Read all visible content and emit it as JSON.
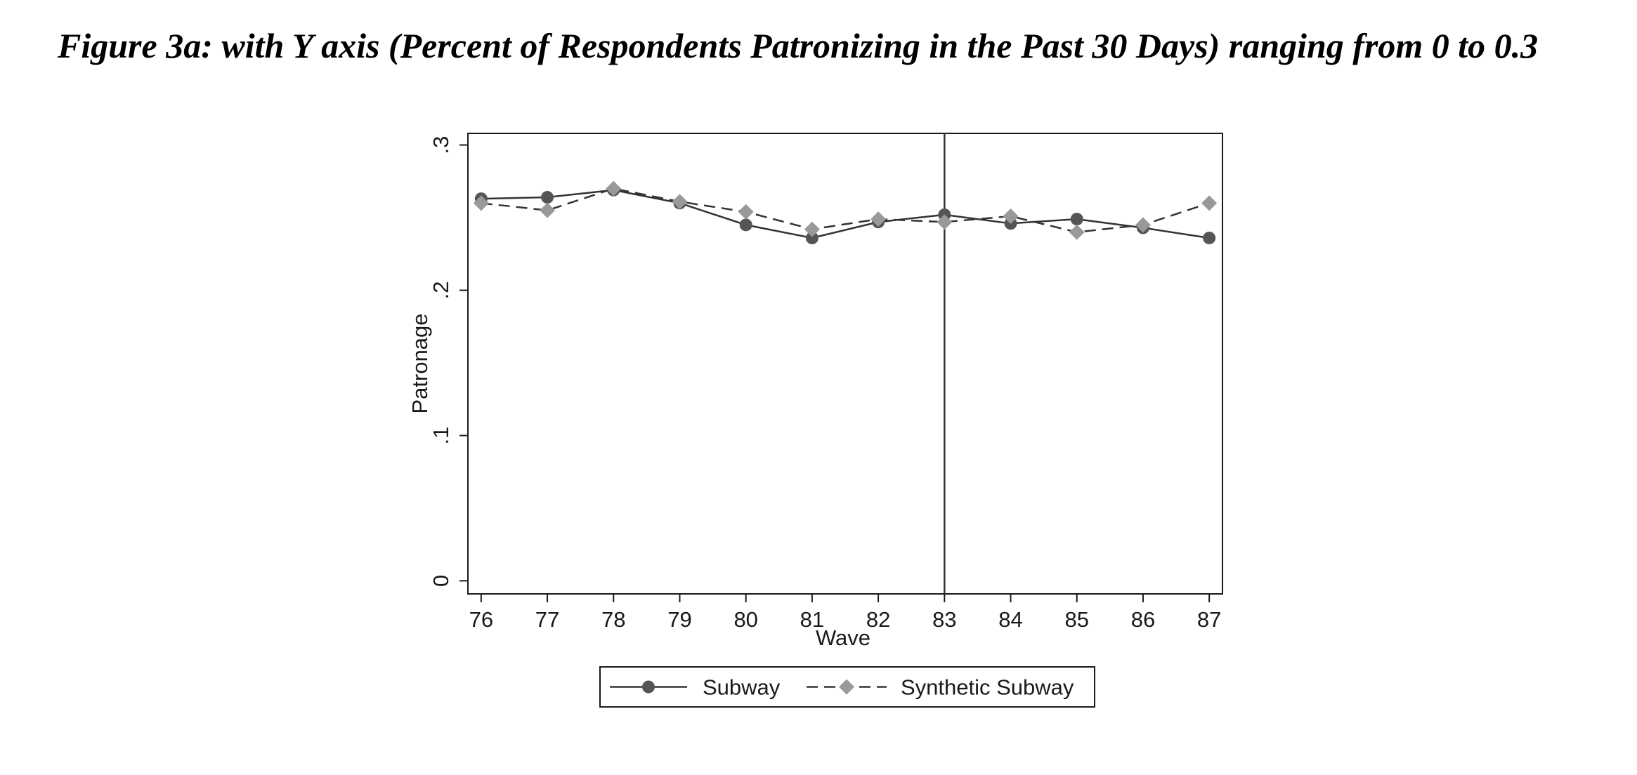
{
  "figure_title": "Figure 3a: with Y axis (Percent of Respondents Patronizing in the Past 30 Days) ranging from 0 to 0.3",
  "chart_data": {
    "type": "line",
    "title": "",
    "xlabel": "Wave",
    "ylabel": "Patronage",
    "x": [
      76,
      77,
      78,
      79,
      80,
      81,
      82,
      83,
      84,
      85,
      86,
      87
    ],
    "x_tick_labels": [
      "76",
      "77",
      "78",
      "79",
      "80",
      "81",
      "82",
      "83",
      "84",
      "85",
      "86",
      "87"
    ],
    "xlim": [
      75.8,
      87.2
    ],
    "ylim": [
      -0.009,
      0.308
    ],
    "y_ticks": [
      0,
      0.1,
      0.2,
      0.3
    ],
    "y_tick_labels": [
      "0",
      ".1",
      ".2",
      ".3"
    ],
    "grid": false,
    "reference_line_x": 83,
    "legend_position": "bottom",
    "series": [
      {
        "name": "Subway",
        "color": "#555555",
        "line_style": "solid",
        "marker": "circle",
        "values": [
          0.263,
          0.264,
          0.269,
          0.26,
          0.245,
          0.236,
          0.247,
          0.252,
          0.246,
          0.249,
          0.243,
          0.236
        ]
      },
      {
        "name": "Synthetic Subway",
        "color": "#999999",
        "line_style": "dashed",
        "marker": "diamond",
        "values": [
          0.26,
          0.255,
          0.27,
          0.261,
          0.254,
          0.242,
          0.249,
          0.247,
          0.251,
          0.24,
          0.245,
          0.26
        ]
      }
    ]
  }
}
